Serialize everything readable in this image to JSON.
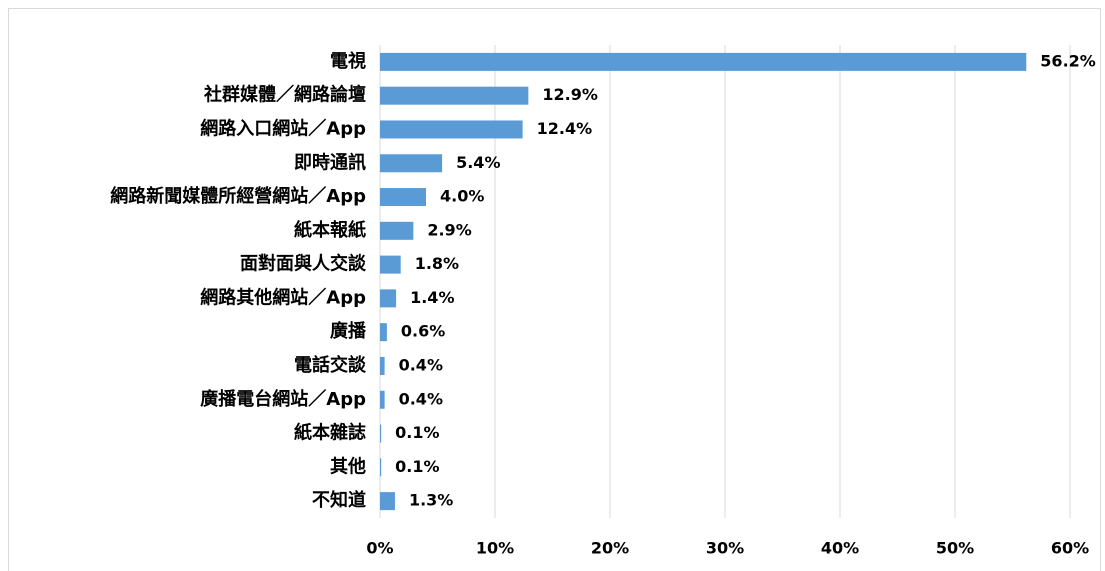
{
  "chart_data": {
    "type": "bar",
    "orientation": "horizontal",
    "categories": [
      "電視",
      "社群媒體／網路論壇",
      "網路入口網站／App",
      "即時通訊",
      "網路新聞媒體所經營網站／App",
      "紙本報紙",
      "面對面與人交談",
      "網路其他網站／App",
      "廣播",
      "電話交談",
      "廣播電台網站／App",
      "紙本雜誌",
      "其他",
      "不知道"
    ],
    "values": [
      56.2,
      12.9,
      12.4,
      5.4,
      4.0,
      2.9,
      1.8,
      1.4,
      0.6,
      0.4,
      0.4,
      0.1,
      0.1,
      1.3
    ],
    "value_labels": [
      "56.2%",
      "12.9%",
      "12.4%",
      "5.4%",
      "4.0%",
      "2.9%",
      "1.8%",
      "1.4%",
      "0.6%",
      "0.4%",
      "0.4%",
      "0.1%",
      "0.1%",
      "1.3%"
    ],
    "color": "#5b9bd5",
    "xlim": [
      0,
      60
    ],
    "xticks": [
      {
        "value": 0,
        "label": "0%"
      },
      {
        "value": 10,
        "label": "10%"
      },
      {
        "value": 20,
        "label": "20%"
      },
      {
        "value": 30,
        "label": "30%"
      },
      {
        "value": 40,
        "label": "40%"
      },
      {
        "value": 50,
        "label": "50%"
      },
      {
        "value": 60,
        "label": "60%"
      }
    ],
    "grid": true
  }
}
